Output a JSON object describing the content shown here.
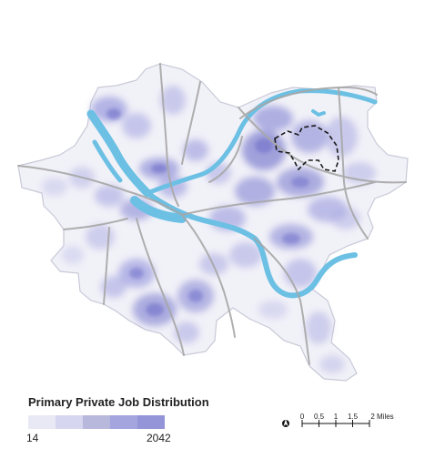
{
  "legend": {
    "title": "Primary Private Job Distribution",
    "min_label": "14",
    "max_label": "2042",
    "colors": [
      "#e9e9f6",
      "#d6d6f0",
      "#b8b8dc",
      "#a4a4de",
      "#9494d8"
    ]
  },
  "scale_bar": {
    "labels": [
      "0",
      "0.5",
      "1",
      "1.5",
      "2 Miles"
    ]
  },
  "map": {
    "boundary_fill": "#f1f1f8",
    "boundary_stroke": "#c9c9d8",
    "density_color": "#8e8ed6",
    "river_color": "#6cc0e4",
    "road_color": "#a7a7a7",
    "highlight_outline_color": "#1a1a1a"
  }
}
